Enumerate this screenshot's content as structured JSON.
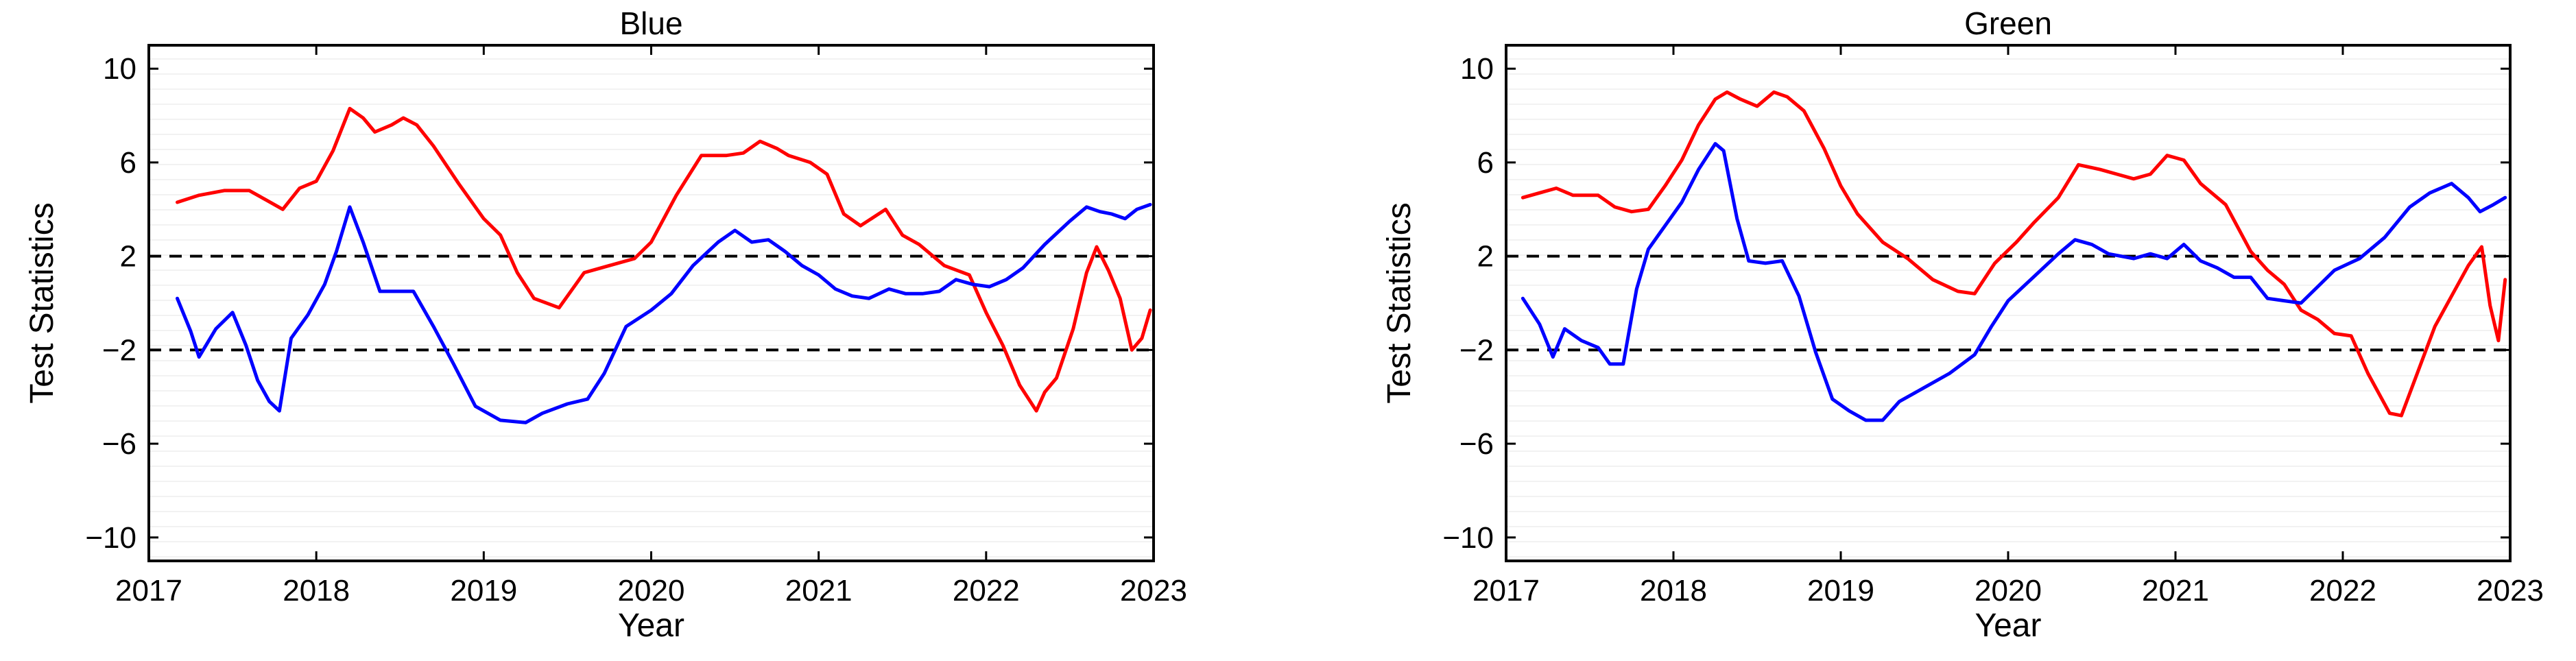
{
  "chart_data": [
    {
      "type": "line",
      "title": "Blue",
      "xlabel": "Year",
      "ylabel": "Test Statistics",
      "xlim": [
        2017,
        2023
      ],
      "ylim": [
        -11,
        11
      ],
      "xticks": [
        2017,
        2018,
        2019,
        2020,
        2021,
        2022,
        2023
      ],
      "xtick_labels": [
        "2017",
        "2018",
        "2019",
        "2020",
        "2021",
        "2022",
        "2023"
      ],
      "yticks": [
        10,
        6,
        2,
        -2,
        -6,
        -10
      ],
      "ytick_labels": [
        "10",
        "6",
        "2",
        "−2",
        "−6",
        "−10"
      ],
      "reference_lines": [
        2,
        -2
      ],
      "grid": false,
      "series": [
        {
          "name": "red",
          "color": "#ff0000",
          "x": [
            2017.17,
            2017.3,
            2017.45,
            2017.6,
            2017.7,
            2017.8,
            2017.9,
            2018.0,
            2018.1,
            2018.2,
            2018.28,
            2018.35,
            2018.45,
            2018.52,
            2018.6,
            2018.7,
            2018.85,
            2019.0,
            2019.1,
            2019.2,
            2019.3,
            2019.45,
            2019.6,
            2019.75,
            2019.9,
            2020.0,
            2020.15,
            2020.3,
            2020.45,
            2020.55,
            2020.65,
            2020.75,
            2020.82,
            2020.95,
            2021.05,
            2021.15,
            2021.25,
            2021.4,
            2021.5,
            2021.6,
            2021.75,
            2021.9,
            2022.0,
            2022.1,
            2022.2,
            2022.3,
            2022.35,
            2022.42,
            2022.52,
            2022.6,
            2022.66,
            2022.73,
            2022.8,
            2022.87,
            2022.93,
            2022.98
          ],
          "y": [
            4.3,
            4.6,
            4.8,
            4.8,
            4.4,
            4.0,
            4.9,
            5.2,
            6.5,
            8.3,
            7.9,
            7.3,
            7.6,
            7.9,
            7.6,
            6.7,
            5.1,
            3.6,
            2.9,
            1.3,
            0.2,
            -0.2,
            1.3,
            1.6,
            1.9,
            2.6,
            4.6,
            6.3,
            6.3,
            6.4,
            6.9,
            6.6,
            6.3,
            6.0,
            5.5,
            3.8,
            3.3,
            4.0,
            2.9,
            2.5,
            1.6,
            1.2,
            -0.4,
            -1.8,
            -3.5,
            -4.6,
            -3.8,
            -3.2,
            -1.1,
            1.3,
            2.4,
            1.4,
            0.2,
            -2.0,
            -1.5,
            -0.3
          ]
        },
        {
          "name": "blue",
          "color": "#0000ff",
          "x": [
            2017.17,
            2017.25,
            2017.3,
            2017.4,
            2017.5,
            2017.58,
            2017.65,
            2017.72,
            2017.78,
            2017.85,
            2017.95,
            2018.05,
            2018.12,
            2018.2,
            2018.28,
            2018.38,
            2018.48,
            2018.58,
            2018.7,
            2018.82,
            2018.95,
            2019.1,
            2019.25,
            2019.35,
            2019.5,
            2019.62,
            2019.72,
            2019.85,
            2020.0,
            2020.12,
            2020.25,
            2020.4,
            2020.5,
            2020.6,
            2020.7,
            2020.8,
            2020.9,
            2021.0,
            2021.1,
            2021.2,
            2021.3,
            2021.42,
            2021.52,
            2021.62,
            2021.72,
            2021.82,
            2021.92,
            2022.02,
            2022.12,
            2022.22,
            2022.35,
            2022.5,
            2022.6,
            2022.68,
            2022.75,
            2022.83,
            2022.9,
            2022.98
          ],
          "y": [
            0.2,
            -1.2,
            -2.3,
            -1.1,
            -0.4,
            -1.8,
            -3.3,
            -4.2,
            -4.6,
            -1.5,
            -0.5,
            0.8,
            2.2,
            4.1,
            2.6,
            0.5,
            0.5,
            0.5,
            -1.0,
            -2.6,
            -4.4,
            -5.0,
            -5.1,
            -4.7,
            -4.3,
            -4.1,
            -3.0,
            -1.0,
            -0.3,
            0.4,
            1.6,
            2.6,
            3.1,
            2.6,
            2.7,
            2.2,
            1.6,
            1.2,
            0.6,
            0.3,
            0.2,
            0.6,
            0.4,
            0.4,
            0.5,
            1.0,
            0.8,
            0.7,
            1.0,
            1.5,
            2.5,
            3.5,
            4.1,
            3.9,
            3.8,
            3.6,
            4.0,
            4.2
          ]
        }
      ]
    },
    {
      "type": "line",
      "title": "Green",
      "xlabel": "Year",
      "ylabel": "Test Statistics",
      "xlim": [
        2017,
        2023
      ],
      "ylim": [
        -11,
        11
      ],
      "xticks": [
        2017,
        2018,
        2019,
        2020,
        2021,
        2022,
        2023
      ],
      "xtick_labels": [
        "2017",
        "2018",
        "2019",
        "2020",
        "2021",
        "2022",
        "2023"
      ],
      "yticks": [
        10,
        6,
        2,
        -2,
        -6,
        -10
      ],
      "ytick_labels": [
        "10",
        "6",
        "2",
        "−2",
        "−6",
        "−10"
      ],
      "reference_lines": [
        2,
        -2
      ],
      "grid": false,
      "series": [
        {
          "name": "red",
          "color": "#ff0000",
          "x": [
            2017.1,
            2017.2,
            2017.3,
            2017.4,
            2017.55,
            2017.65,
            2017.75,
            2017.85,
            2017.95,
            2018.05,
            2018.15,
            2018.25,
            2018.32,
            2018.4,
            2018.5,
            2018.6,
            2018.68,
            2018.78,
            2018.9,
            2019.0,
            2019.1,
            2019.25,
            2019.4,
            2019.55,
            2019.7,
            2019.8,
            2019.92,
            2020.05,
            2020.15,
            2020.3,
            2020.42,
            2020.55,
            2020.65,
            2020.75,
            2020.85,
            2020.95,
            2021.05,
            2021.15,
            2021.3,
            2021.45,
            2021.55,
            2021.65,
            2021.75,
            2021.85,
            2021.95,
            2022.05,
            2022.15,
            2022.28,
            2022.35,
            2022.45,
            2022.55,
            2022.65,
            2022.75,
            2022.83,
            2022.88,
            2022.93,
            2022.97
          ],
          "y": [
            4.5,
            4.7,
            4.9,
            4.6,
            4.6,
            4.1,
            3.9,
            4.0,
            5.0,
            6.1,
            7.6,
            8.7,
            9.0,
            8.7,
            8.4,
            9.0,
            8.8,
            8.2,
            6.6,
            5.0,
            3.8,
            2.6,
            1.9,
            1.0,
            0.5,
            0.4,
            1.7,
            2.6,
            3.4,
            4.5,
            5.9,
            5.7,
            5.5,
            5.3,
            5.5,
            6.3,
            6.1,
            5.1,
            4.2,
            2.2,
            1.4,
            0.8,
            -0.3,
            -0.7,
            -1.3,
            -1.4,
            -3.0,
            -4.7,
            -4.8,
            -2.9,
            -1.0,
            0.3,
            1.6,
            2.4,
            -0.1,
            -1.6,
            1.0
          ]
        },
        {
          "name": "blue",
          "color": "#0000ff",
          "x": [
            2017.1,
            2017.2,
            2017.28,
            2017.35,
            2017.45,
            2017.55,
            2017.62,
            2017.7,
            2017.78,
            2017.85,
            2017.95,
            2018.05,
            2018.15,
            2018.25,
            2018.3,
            2018.38,
            2018.45,
            2018.55,
            2018.65,
            2018.75,
            2018.85,
            2018.95,
            2019.05,
            2019.15,
            2019.25,
            2019.35,
            2019.5,
            2019.65,
            2019.8,
            2019.9,
            2020.0,
            2020.15,
            2020.3,
            2020.4,
            2020.5,
            2020.6,
            2020.75,
            2020.85,
            2020.95,
            2021.05,
            2021.15,
            2021.25,
            2021.35,
            2021.45,
            2021.55,
            2021.65,
            2021.75,
            2021.85,
            2021.95,
            2022.1,
            2022.25,
            2022.4,
            2022.52,
            2022.65,
            2022.75,
            2022.82,
            2022.9,
            2022.97
          ],
          "y": [
            0.2,
            -0.9,
            -2.3,
            -1.1,
            -1.6,
            -1.9,
            -2.6,
            -2.6,
            0.6,
            2.3,
            3.3,
            4.3,
            5.7,
            6.8,
            6.5,
            3.6,
            1.8,
            1.7,
            1.8,
            0.3,
            -2.1,
            -4.1,
            -4.6,
            -5.0,
            -5.0,
            -4.2,
            -3.6,
            -3.0,
            -2.2,
            -1.0,
            0.1,
            1.1,
            2.1,
            2.7,
            2.5,
            2.1,
            1.9,
            2.1,
            1.9,
            2.5,
            1.8,
            1.5,
            1.1,
            1.1,
            0.2,
            0.1,
            0.0,
            0.7,
            1.4,
            1.9,
            2.8,
            4.1,
            4.7,
            5.1,
            4.5,
            3.9,
            4.2,
            4.5
          ]
        }
      ]
    }
  ]
}
